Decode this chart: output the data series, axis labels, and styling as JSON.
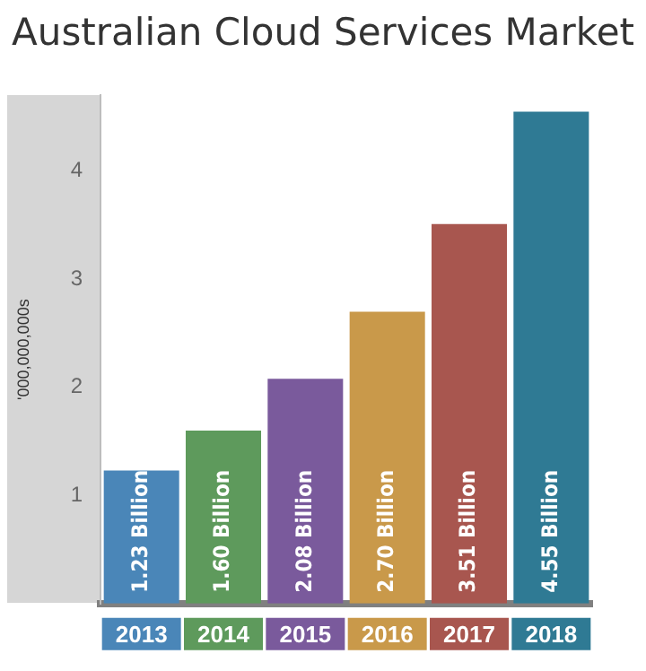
{
  "chart_data": {
    "type": "bar",
    "title": "Australian Cloud Services Market",
    "ylabel": "'000,000,000s",
    "categories": [
      "2013",
      "2014",
      "2015",
      "2016",
      "2017",
      "2018"
    ],
    "values": [
      1.23,
      1.6,
      2.08,
      2.7,
      3.51,
      4.55
    ],
    "colors": [
      "#4a86b8",
      "#5e9a5c",
      "#7a5a9c",
      "#c9994a",
      "#a8564f",
      "#2f7a94"
    ],
    "value_labels": [
      "1.23 Billion",
      "1.60 Billion",
      "2.08 Billion",
      "2.70 Billion",
      "3.51 Billion",
      "4.55 Billion"
    ],
    "ylim": [
      0,
      4.7
    ],
    "yticks": [
      1,
      2,
      3,
      4
    ],
    "grid": false,
    "legend": false
  }
}
